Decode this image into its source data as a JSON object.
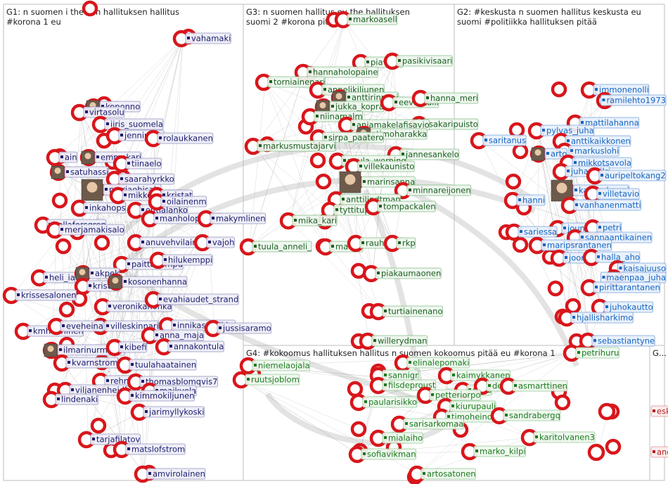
{
  "colors": {
    "ring": "#d8161b",
    "g1_text": "#1c1c6e",
    "g1_fill": "#eeeef8",
    "g1_stroke": "#8a8ab8",
    "g2_text": "#1565c0",
    "g2_fill": "#e8f1fc",
    "g2_stroke": "#6d9ad6",
    "g3_text": "#1b5e20",
    "g3_fill": "#edf7ee",
    "g3_stroke": "#7cb87f",
    "g4_text": "#1b7a1f",
    "g4_fill": "#eef8ee",
    "g4_stroke": "#8ac48c",
    "g5_text": "#b71c1c",
    "g5_fill": "#fdecec",
    "g5_stroke": "#d98b8b"
  },
  "groups": [
    {
      "id": "g1",
      "title": "G1: n suomen i the och hallituksen hallitus #korona 1 eu",
      "nodes": [
        "vahamaki",
        "koponno",
        "virtasolu",
        "iiris_suomela",
        "jennipitko",
        "rolaukkanen",
        "ain",
        "emmakari",
        "tiinaelo",
        "satuhassi",
        "saarahyrkko",
        "mariaohisalo",
        "inkahops",
        "outialanko",
        "mikkolennum",
        "kristat",
        "oilainenm",
        "manholopainen",
        "makymlinen",
        "bellaforsgren",
        "merjamakisalo",
        "anuvehvilainen",
        "vajoh",
        "paittakumpu",
        "hilukemppi",
        "heli_ia",
        "akpek",
        "kristak",
        "kosonenhanna",
        "krissesalonen",
        "veronikahonka",
        "evahiaudet_strand",
        "villeskinnari",
        "innikasaarikko",
        "jussisaramo",
        "kmhanninen",
        "eveheina",
        "anna_maja",
        "annakontula",
        "ilmarinurminen",
        "kibefi",
        "kvarnstrom",
        "tuulahaatainen",
        "rehnkivi",
        "thomasblomqvis7",
        "viljanenheidi",
        "maikvela",
        "lindenaki",
        "kimmokiljunen",
        "jarimyllykoski",
        "tarjafilatov",
        "matslofstrom",
        "amvirolainen"
      ]
    },
    {
      "id": "g2",
      "title": "G2: #keskusta n suomen hallitus keskusta eu suomi #politiikka hallituksen pitää",
      "nodes": [
        "immonenolli",
        "ramilehto1973",
        "mattilahanna",
        "pylvas_juha",
        "anttikaikkonen",
        "markuslohi",
        "arto",
        "mikkotsavola",
        "juhasipila",
        "auripeltokang2",
        "katrikulmuni",
        "villetavio",
        "vanhanenmatti",
        "hanni",
        "jouniovaska",
        "petri",
        "sannaantikainen",
        "sariessa",
        "maripsrantanen",
        "joona",
        "halla_aho",
        "kaisajuuso",
        "maenpaa_juha",
        "pirittarantanen",
        "juhokautto",
        "hjallisharkimo",
        "sebastiantyne",
        "saritanus"
      ]
    },
    {
      "id": "g3",
      "title": "G3: n suomen hallitus eu the hallituksen suomi 2 #korona pitää",
      "nodes": [
        "markoasell",
        "piavuita",
        "pasikivisaari",
        "hannaholopaine",
        "torniainenari",
        "annelikiljunen",
        "anttirinnepj",
        "jukka_kopra",
        "eeva_kalli",
        "hanna_meri",
        "niinamalm",
        "sakaripuisto",
        "anjamakelafisavio",
        "timoharakka",
        "sirpa_paatero",
        "jannesankelo",
        "markusmustajarvi",
        "paula_werning",
        "villekaunisto",
        "marinsanna",
        "minnareijonen",
        "anttilindtman",
        "tyttitup",
        "tompackalen",
        "mika_kari",
        "tuula_anneli_",
        "matias",
        "rauhanen",
        "rkp",
        "piakaumaonen",
        "turtiainenano",
        "willerydman"
      ]
    },
    {
      "id": "g4",
      "title": "G4: #kokoomus hallituksen hallitus n suomen kokoomus pitää eu #korona 1",
      "nodes": [
        "niemelaojala",
        "ruutsjoblom",
        "elinalepomaki",
        "sannigr",
        "kaimykkanen",
        "filsdeproust",
        "sofia",
        "deande",
        "asmarttinen",
        "paularisikko",
        "petteriorpo",
        "kiurupauli",
        "timoheinonen",
        "sandrabergq",
        "sarisarkomaa",
        "mialaiho",
        "karitolvanen3",
        "marko_kilpi",
        "sofiavikman",
        "artosatonen",
        "petrihuru"
      ]
    },
    {
      "id": "g5",
      "title": "G...",
      "nodes": [
        "eskokivira",
        "andersnorrback"
      ]
    }
  ]
}
